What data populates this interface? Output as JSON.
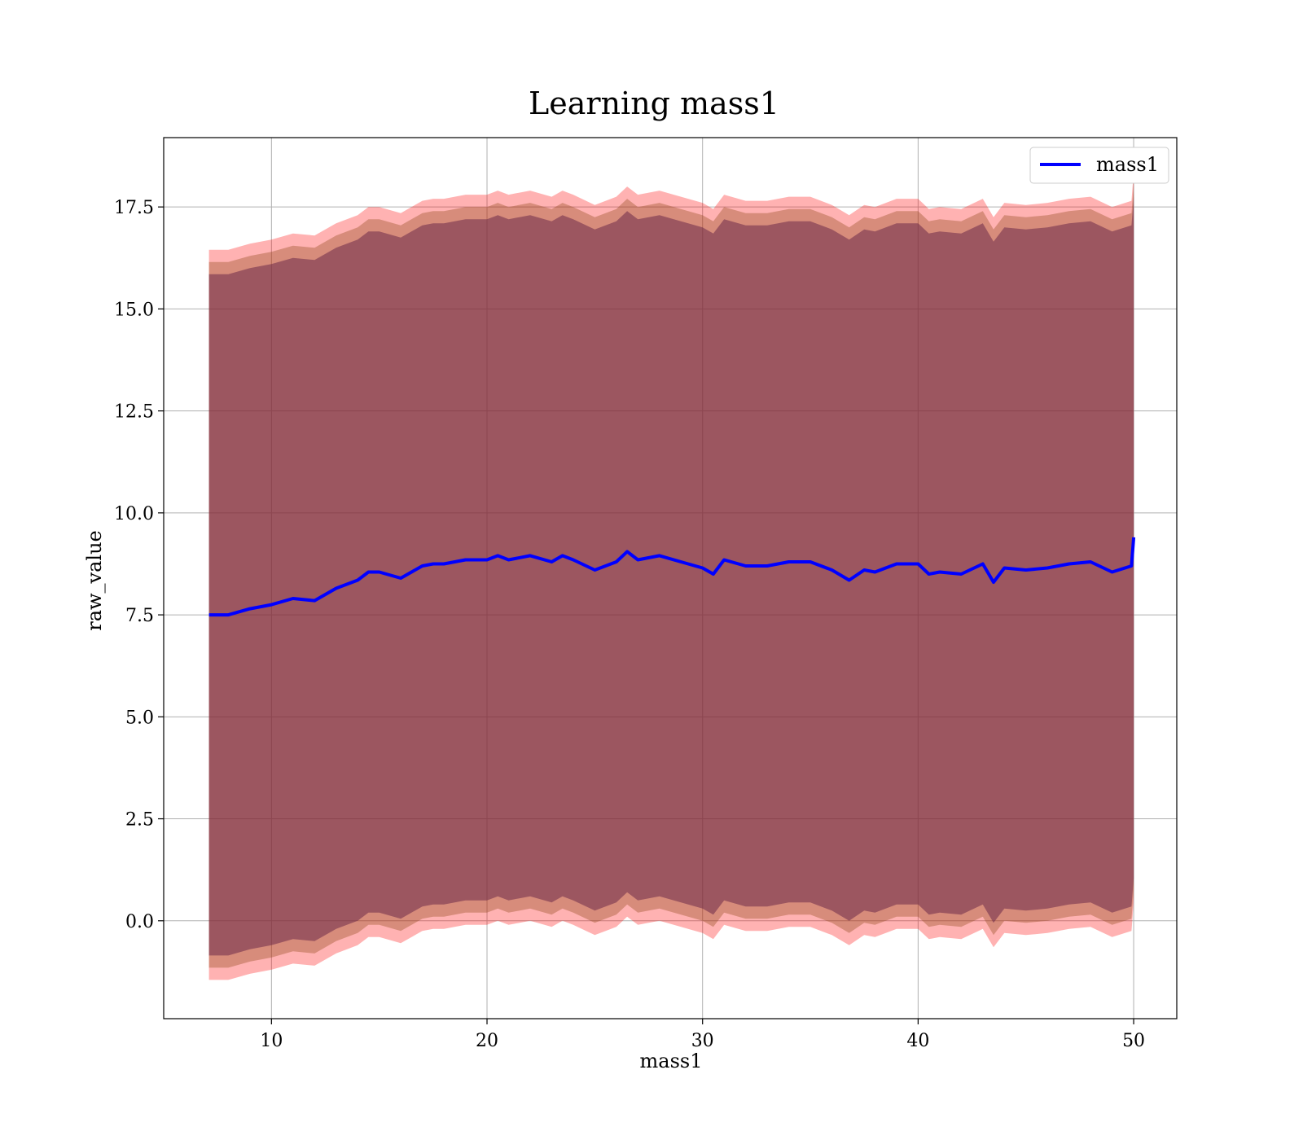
{
  "chart_data": {
    "type": "line",
    "title": "Learning mass1",
    "xlabel": "mass1",
    "ylabel": "raw_value",
    "xlim": [
      5.0,
      52.0
    ],
    "ylim": [
      -2.4,
      19.2
    ],
    "xticks": [
      10,
      20,
      30,
      40,
      50
    ],
    "xtick_labels": [
      "10",
      "20",
      "30",
      "40",
      "50"
    ],
    "yticks": [
      0.0,
      2.5,
      5.0,
      7.5,
      10.0,
      12.5,
      15.0,
      17.5
    ],
    "ytick_labels": [
      "0.0",
      "2.5",
      "5.0",
      "7.5",
      "10.0",
      "12.5",
      "15.0",
      "17.5"
    ],
    "grid": true,
    "legend": {
      "placement": "top-right",
      "entries": [
        "mass1"
      ]
    },
    "x": [
      7.1,
      8,
      9,
      10,
      11,
      12,
      13,
      14,
      14.5,
      15,
      16,
      17,
      17.5,
      18,
      19,
      20,
      20.5,
      21,
      22,
      23,
      23.5,
      24,
      25,
      26,
      26.5,
      27,
      28,
      29,
      30,
      30.5,
      31,
      32,
      33,
      34,
      35,
      36,
      36.8,
      37.5,
      38,
      39,
      40,
      40.5,
      41,
      42,
      43,
      43.5,
      44,
      45,
      46,
      47,
      48,
      49,
      49.9,
      50.0
    ],
    "series": [
      {
        "name": "mass1",
        "color": "#0000ff",
        "values": [
          7.5,
          7.5,
          7.65,
          7.75,
          7.9,
          7.85,
          8.15,
          8.35,
          8.55,
          8.55,
          8.4,
          8.7,
          8.75,
          8.75,
          8.85,
          8.85,
          8.95,
          8.85,
          8.95,
          8.8,
          8.95,
          8.85,
          8.6,
          8.8,
          9.05,
          8.85,
          8.95,
          8.8,
          8.65,
          8.5,
          8.85,
          8.7,
          8.7,
          8.8,
          8.8,
          8.6,
          8.35,
          8.6,
          8.55,
          8.75,
          8.75,
          8.5,
          8.55,
          8.5,
          8.75,
          8.3,
          8.65,
          8.6,
          8.65,
          8.75,
          8.8,
          8.55,
          8.7,
          9.4
        ]
      }
    ],
    "bands": [
      {
        "color": "#ff0000",
        "opacity": 0.3,
        "offset_low": -8.95,
        "offset_high": 8.95
      },
      {
        "color": "#8b4513",
        "opacity": 0.35,
        "offset_low": -8.65,
        "offset_high": 8.65
      },
      {
        "color": "#6b2a4a",
        "opacity": 0.55,
        "offset_low": -8.35,
        "offset_high": 8.35
      }
    ]
  }
}
